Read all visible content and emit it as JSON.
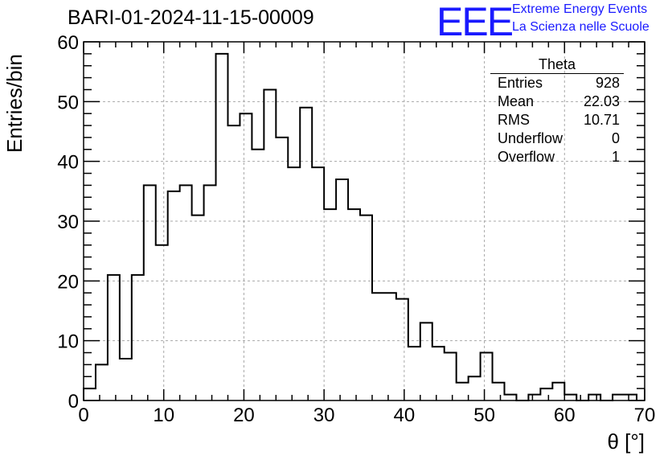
{
  "title": "BARI-01-2024-11-15-00009",
  "logo": {
    "mark": "EEE",
    "line1": "Extreme Energy Events",
    "line2": "La Scienza nelle Scuole"
  },
  "stats": {
    "title": "Theta",
    "rows": [
      {
        "label": "Entries",
        "value": "928"
      },
      {
        "label": "Mean",
        "value": "22.03"
      },
      {
        "label": "RMS",
        "value": "10.71"
      },
      {
        "label": "Underflow",
        "value": "0"
      },
      {
        "label": "Overflow",
        "value": "1"
      }
    ]
  },
  "chart_data": {
    "type": "bar",
    "histogram_style": "step",
    "xlabel": "θ [°]",
    "ylabel": "Entries/bin",
    "xlim": [
      0,
      70
    ],
    "ylim": [
      0,
      60
    ],
    "grid": true,
    "bin_width": 1.5,
    "x_ticks": [
      "0",
      "10",
      "20",
      "30",
      "40",
      "50",
      "60",
      "70"
    ],
    "y_ticks": [
      "0",
      "10",
      "20",
      "30",
      "40",
      "50",
      "60"
    ],
    "bin_edges": [
      0,
      1.5,
      3,
      4.5,
      6,
      7.5,
      9,
      10.5,
      12,
      13.5,
      15,
      16.5,
      18,
      19.5,
      21,
      22.5,
      24,
      25.5,
      27,
      28.5,
      30,
      31.5,
      33,
      34.5,
      36,
      37.5,
      39,
      40.5,
      42,
      43.5,
      45,
      46.5,
      48,
      49.5,
      51,
      52.5,
      54,
      55.5,
      57,
      58.5,
      60,
      61.5,
      63,
      64.5,
      66,
      67.5,
      69
    ],
    "values": [
      2,
      6,
      21,
      7,
      21,
      36,
      26,
      35,
      36,
      31,
      36,
      58,
      46,
      48,
      42,
      52,
      44,
      39,
      49,
      39,
      32,
      37,
      32,
      31,
      18,
      18,
      17,
      9,
      13,
      9,
      8,
      3,
      4,
      8,
      3,
      1,
      0,
      1,
      2,
      3,
      1,
      0,
      1,
      0,
      1,
      1,
      0
    ]
  }
}
